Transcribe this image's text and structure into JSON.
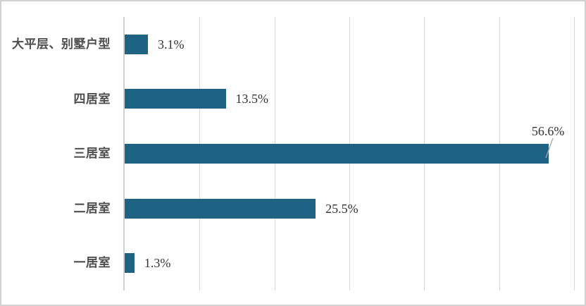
{
  "chart_data": {
    "type": "bar",
    "orientation": "horizontal",
    "title": "",
    "xlabel": "",
    "ylabel": "",
    "categories": [
      "大平层、别墅户型",
      "四居室",
      "三居室",
      "二居室",
      "一居室"
    ],
    "values": [
      3.1,
      13.5,
      56.6,
      25.5,
      1.3
    ],
    "value_labels": [
      "3.1%",
      "13.5%",
      "56.6%",
      "25.5%",
      "1.3%"
    ],
    "xlim": [
      0,
      60
    ],
    "gridlines": [
      0,
      10,
      20,
      30,
      40,
      50,
      60
    ],
    "grid": true,
    "legend": false,
    "callout_index": 2
  },
  "style": {
    "bar_color": "#1e6384",
    "gridline_color": "#d9d9d9",
    "axis_line_color": "#d0d0d0",
    "category_label_color": "#4d4d4d",
    "value_label_color": "#333333",
    "leader_line_color": "#a6a6a6",
    "frame_border_color": "#d2d2d2",
    "background_color": "#ffffff"
  }
}
